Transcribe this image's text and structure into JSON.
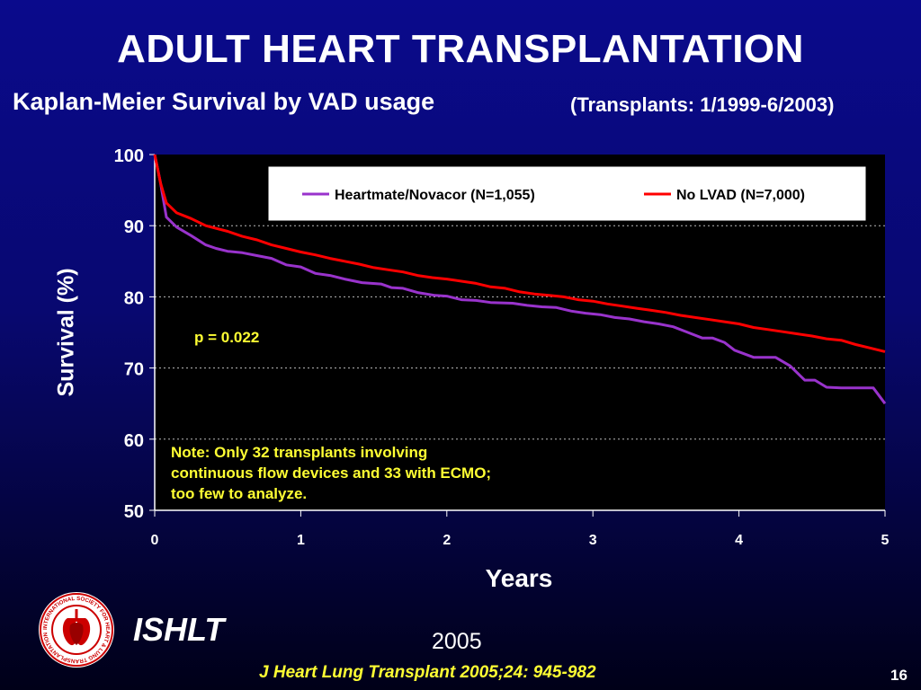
{
  "slide": {
    "title": "ADULT HEART TRANSPLANTATION",
    "subtitle": "Kaplan-Meier Survival by VAD usage",
    "transplant_range": "(Transplants: 1/1999-6/2003)",
    "p_value": "p = 0.022",
    "note": "Note: Only 32 transplants involving continuous flow devices and 33 with ECMO; too few to analyze.",
    "organization": "ISHLT",
    "year": "2005",
    "citation": "J Heart Lung Transplant 2005;24: 945-982",
    "slide_number": "16",
    "logo_text": "INTERNATIONAL SOCIETY FOR HEART & LUNG TRANSPLANTATION"
  },
  "chart_data": {
    "type": "line",
    "title": "",
    "xlabel": "Years",
    "ylabel": "Survival (%)",
    "xlim": [
      0,
      5
    ],
    "ylim": [
      50,
      100
    ],
    "xticks": [
      "0",
      "1",
      "2",
      "3",
      "4",
      "5"
    ],
    "yticks": [
      "50",
      "60",
      "70",
      "80",
      "90",
      "100"
    ],
    "grid": "horizontal dotted",
    "legend_position": "top-right",
    "series": [
      {
        "name": "Heartmate/Novacor (N=1,055)",
        "color": "#9933cc",
        "points": [
          [
            0,
            100
          ],
          [
            0.04,
            96
          ],
          [
            0.08,
            91.2
          ],
          [
            0.15,
            89.8
          ],
          [
            0.25,
            88.6
          ],
          [
            0.35,
            87.3
          ],
          [
            0.42,
            86.8
          ],
          [
            0.5,
            86.4
          ],
          [
            0.6,
            86.2
          ],
          [
            0.7,
            85.8
          ],
          [
            0.8,
            85.4
          ],
          [
            0.9,
            84.5
          ],
          [
            1.0,
            84.2
          ],
          [
            1.1,
            83.3
          ],
          [
            1.2,
            83.0
          ],
          [
            1.3,
            82.5
          ],
          [
            1.42,
            82.0
          ],
          [
            1.55,
            81.8
          ],
          [
            1.62,
            81.3
          ],
          [
            1.7,
            81.2
          ],
          [
            1.8,
            80.6
          ],
          [
            1.92,
            80.2
          ],
          [
            2.0,
            80.1
          ],
          [
            2.1,
            79.6
          ],
          [
            2.2,
            79.5
          ],
          [
            2.3,
            79.2
          ],
          [
            2.45,
            79.1
          ],
          [
            2.55,
            78.8
          ],
          [
            2.65,
            78.6
          ],
          [
            2.75,
            78.5
          ],
          [
            2.85,
            78.0
          ],
          [
            2.95,
            77.7
          ],
          [
            3.05,
            77.5
          ],
          [
            3.15,
            77.1
          ],
          [
            3.25,
            76.9
          ],
          [
            3.35,
            76.5
          ],
          [
            3.45,
            76.2
          ],
          [
            3.55,
            75.8
          ],
          [
            3.65,
            75.0
          ],
          [
            3.75,
            74.2
          ],
          [
            3.82,
            74.2
          ],
          [
            3.9,
            73.6
          ],
          [
            3.97,
            72.5
          ],
          [
            4.1,
            71.5
          ],
          [
            4.25,
            71.5
          ],
          [
            4.35,
            70.3
          ],
          [
            4.45,
            68.3
          ],
          [
            4.52,
            68.3
          ],
          [
            4.6,
            67.3
          ],
          [
            4.7,
            67.2
          ],
          [
            4.8,
            67.2
          ],
          [
            4.92,
            67.2
          ],
          [
            5.0,
            65.0
          ]
        ]
      },
      {
        "name": "No LVAD (N=7,000)",
        "color": "#ff0000",
        "points": [
          [
            0,
            100
          ],
          [
            0.04,
            96
          ],
          [
            0.08,
            93.2
          ],
          [
            0.15,
            91.8
          ],
          [
            0.25,
            91.0
          ],
          [
            0.35,
            90.0
          ],
          [
            0.5,
            89.2
          ],
          [
            0.6,
            88.5
          ],
          [
            0.7,
            88.0
          ],
          [
            0.8,
            87.3
          ],
          [
            0.9,
            86.8
          ],
          [
            1.0,
            86.3
          ],
          [
            1.1,
            85.9
          ],
          [
            1.2,
            85.4
          ],
          [
            1.3,
            85.0
          ],
          [
            1.4,
            84.6
          ],
          [
            1.5,
            84.1
          ],
          [
            1.6,
            83.8
          ],
          [
            1.7,
            83.5
          ],
          [
            1.8,
            83.0
          ],
          [
            1.9,
            82.7
          ],
          [
            2.0,
            82.5
          ],
          [
            2.1,
            82.2
          ],
          [
            2.2,
            81.9
          ],
          [
            2.3,
            81.4
          ],
          [
            2.4,
            81.2
          ],
          [
            2.5,
            80.7
          ],
          [
            2.6,
            80.4
          ],
          [
            2.7,
            80.2
          ],
          [
            2.8,
            80.0
          ],
          [
            2.9,
            79.6
          ],
          [
            3.0,
            79.4
          ],
          [
            3.1,
            79.0
          ],
          [
            3.2,
            78.7
          ],
          [
            3.3,
            78.4
          ],
          [
            3.4,
            78.1
          ],
          [
            3.5,
            77.8
          ],
          [
            3.6,
            77.4
          ],
          [
            3.7,
            77.1
          ],
          [
            3.8,
            76.8
          ],
          [
            3.9,
            76.5
          ],
          [
            4.0,
            76.2
          ],
          [
            4.1,
            75.7
          ],
          [
            4.2,
            75.4
          ],
          [
            4.3,
            75.1
          ],
          [
            4.4,
            74.8
          ],
          [
            4.5,
            74.5
          ],
          [
            4.6,
            74.1
          ],
          [
            4.7,
            73.9
          ],
          [
            4.8,
            73.3
          ],
          [
            4.9,
            72.8
          ],
          [
            5.0,
            72.3
          ]
        ]
      }
    ]
  }
}
